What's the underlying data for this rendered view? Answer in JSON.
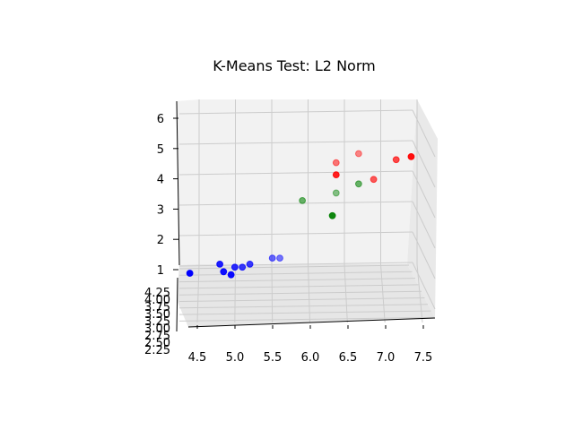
{
  "chart_data": {
    "type": "scatter",
    "title": "K-Means Test: L2 Norm",
    "x_ticks": [
      "4.5",
      "5.0",
      "5.5",
      "6.0",
      "6.5",
      "7.0",
      "7.5"
    ],
    "y_ticks": [
      "2.25",
      "2.50",
      "2.75",
      "3.00",
      "3.25",
      "3.50",
      "3.75",
      "4.00",
      "4.25"
    ],
    "z_ticks": [
      "1",
      "2",
      "3",
      "4",
      "5",
      "6"
    ],
    "xlim": [
      4.3,
      7.55
    ],
    "zlim": [
      0.6,
      6.6
    ],
    "grid": true,
    "series": [
      {
        "color": "#0000ff",
        "points": [
          {
            "x": 4.4,
            "z": 1.0,
            "depth": 0.0
          },
          {
            "x": 4.8,
            "z": 1.3,
            "depth": 0.2
          },
          {
            "x": 4.85,
            "z": 1.05,
            "depth": 0.1
          },
          {
            "x": 4.95,
            "z": 0.95,
            "depth": 0.05
          },
          {
            "x": 5.0,
            "z": 1.2,
            "depth": 0.3
          },
          {
            "x": 5.1,
            "z": 1.2,
            "depth": 0.4
          },
          {
            "x": 5.2,
            "z": 1.3,
            "depth": 0.4
          },
          {
            "x": 5.5,
            "z": 1.5,
            "depth": 0.7
          },
          {
            "x": 5.6,
            "z": 1.5,
            "depth": 0.8
          }
        ]
      },
      {
        "color": "#008000",
        "points": [
          {
            "x": 5.9,
            "z": 3.4,
            "depth": 0.7
          },
          {
            "x": 6.3,
            "z": 2.9,
            "depth": 0.1
          },
          {
            "x": 6.35,
            "z": 3.65,
            "depth": 0.9
          },
          {
            "x": 6.65,
            "z": 3.95,
            "depth": 0.7
          }
        ]
      },
      {
        "color": "#ff0000",
        "points": [
          {
            "x": 6.35,
            "z": 4.65,
            "depth": 0.8
          },
          {
            "x": 6.35,
            "z": 4.25,
            "depth": 0.2
          },
          {
            "x": 6.65,
            "z": 4.95,
            "depth": 0.9
          },
          {
            "x": 6.85,
            "z": 4.1,
            "depth": 0.6
          },
          {
            "x": 7.15,
            "z": 4.75,
            "depth": 0.5
          },
          {
            "x": 7.35,
            "z": 4.85,
            "depth": 0.1
          }
        ]
      }
    ]
  }
}
